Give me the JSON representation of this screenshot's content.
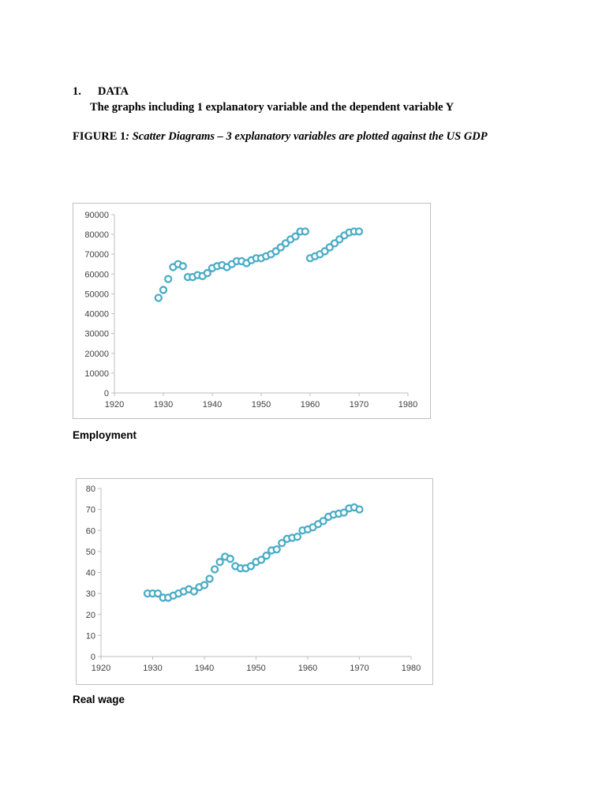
{
  "heading": {
    "number": "1.",
    "title": "DATA"
  },
  "subtitle": "The graphs including 1 explanatory variable and the dependent variable Y",
  "figure": {
    "label": "FIGURE 1",
    "caption": ": Scatter Diagrams – 3 explanatory variables  are plotted against the US GDP"
  },
  "captions": [
    "Employment",
    "Real wage"
  ],
  "colors": {
    "marker": "#4bacc6",
    "axis": "#bfbfbf"
  },
  "chart_data": [
    {
      "type": "scatter",
      "title": "",
      "xlabel": "",
      "ylabel": "",
      "xlim": [
        1920,
        1980
      ],
      "ylim": [
        0,
        90000
      ],
      "xticks": [
        1920,
        1930,
        1940,
        1950,
        1960,
        1970,
        1980
      ],
      "yticks": [
        0,
        10000,
        20000,
        30000,
        40000,
        50000,
        60000,
        70000,
        80000,
        90000
      ],
      "grid": false,
      "x": [
        1929,
        1930,
        1931,
        1932,
        1933,
        1934,
        1935,
        1936,
        1937,
        1938,
        1939,
        1940,
        1941,
        1942,
        1943,
        1944,
        1945,
        1946,
        1947,
        1948,
        1949,
        1950,
        1951,
        1952,
        1953,
        1954,
        1955,
        1956,
        1957,
        1958,
        1959,
        1960,
        1961,
        1962,
        1963,
        1964,
        1965,
        1966,
        1967,
        1968,
        1969,
        1970
      ],
      "y": [
        48000,
        52000,
        57500,
        63500,
        65000,
        64000,
        58500,
        58500,
        59500,
        59000,
        60500,
        63000,
        64000,
        64500,
        63500,
        65000,
        66500,
        66500,
        65500,
        67000,
        68000,
        68000,
        69000,
        70000,
        71500,
        73500,
        75500,
        77500,
        79000,
        81500,
        81500,
        68000,
        69000,
        70000,
        71500,
        73500,
        75500,
        77500,
        79500,
        81000,
        81500,
        81500
      ]
    },
    {
      "type": "scatter",
      "title": "",
      "xlabel": "",
      "ylabel": "",
      "xlim": [
        1920,
        1980
      ],
      "ylim": [
        0,
        80
      ],
      "xticks": [
        1920,
        1930,
        1940,
        1950,
        1960,
        1970,
        1980
      ],
      "yticks": [
        0,
        10,
        20,
        30,
        40,
        50,
        60,
        70,
        80
      ],
      "grid": false,
      "x": [
        1929,
        1930,
        1931,
        1932,
        1933,
        1934,
        1935,
        1936,
        1937,
        1938,
        1939,
        1940,
        1941,
        1942,
        1943,
        1944,
        1945,
        1946,
        1947,
        1948,
        1949,
        1950,
        1951,
        1952,
        1953,
        1954,
        1955,
        1956,
        1957,
        1958,
        1959,
        1960,
        1961,
        1962,
        1963,
        1964,
        1965,
        1966,
        1967,
        1968,
        1969,
        1970
      ],
      "y": [
        30,
        30,
        30,
        28,
        28,
        29,
        30,
        31,
        32,
        31,
        33,
        34,
        37,
        41.5,
        45,
        47.5,
        46.5,
        43,
        42,
        42,
        43,
        45,
        46,
        48,
        50.5,
        51,
        54,
        56,
        56.5,
        57,
        60,
        60.5,
        61.5,
        63,
        64.5,
        66.5,
        67.5,
        68,
        68.5,
        70.5,
        71,
        70
      ]
    }
  ]
}
